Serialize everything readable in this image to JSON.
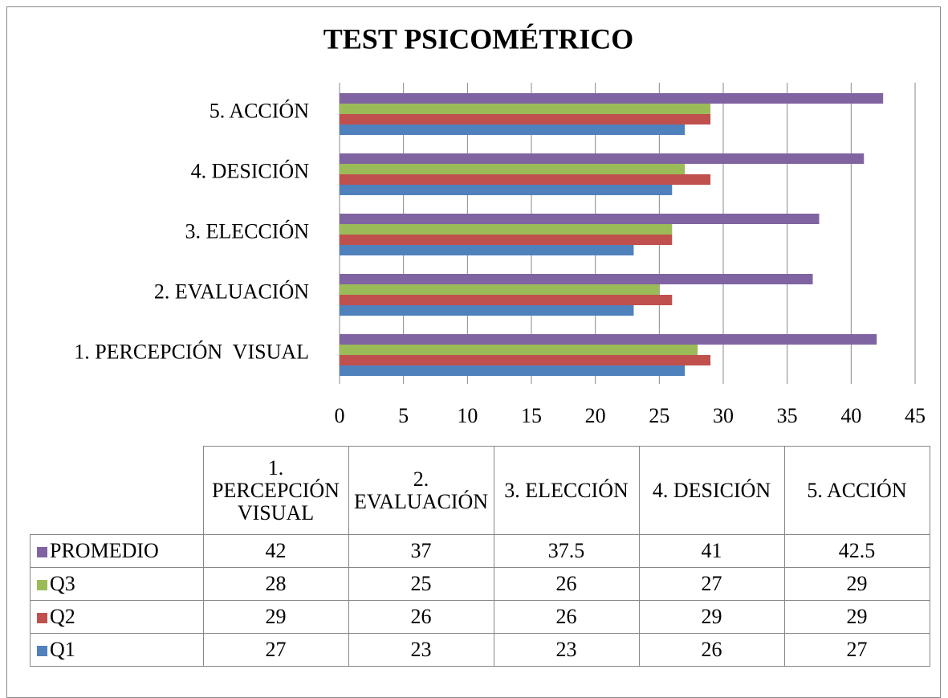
{
  "chart_data": {
    "type": "bar",
    "orientation": "horizontal",
    "title": "TEST PSICOMÉTRICO",
    "categories": [
      "1. PERCEPCIÓN  VISUAL",
      "2. EVALUACIÓN",
      "3. ELECCIÓN",
      "4. DESICIÓN",
      "5. ACCIÓN"
    ],
    "series": [
      {
        "name": "Q1",
        "color": "#4f81bd",
        "values": [
          27,
          23,
          23,
          26,
          27
        ]
      },
      {
        "name": "Q2",
        "color": "#c0504d",
        "values": [
          29,
          26,
          26,
          29,
          29
        ]
      },
      {
        "name": "Q3",
        "color": "#9bbb59",
        "values": [
          28,
          25,
          26,
          27,
          29
        ]
      },
      {
        "name": "PROMEDIO",
        "color": "#8064a2",
        "values": [
          42,
          37,
          37.5,
          41,
          42.5
        ]
      }
    ],
    "xlim": [
      0,
      45
    ],
    "xticks": [
      0,
      5,
      10,
      15,
      20,
      25,
      30,
      35,
      40,
      45
    ],
    "grid": true
  }
}
